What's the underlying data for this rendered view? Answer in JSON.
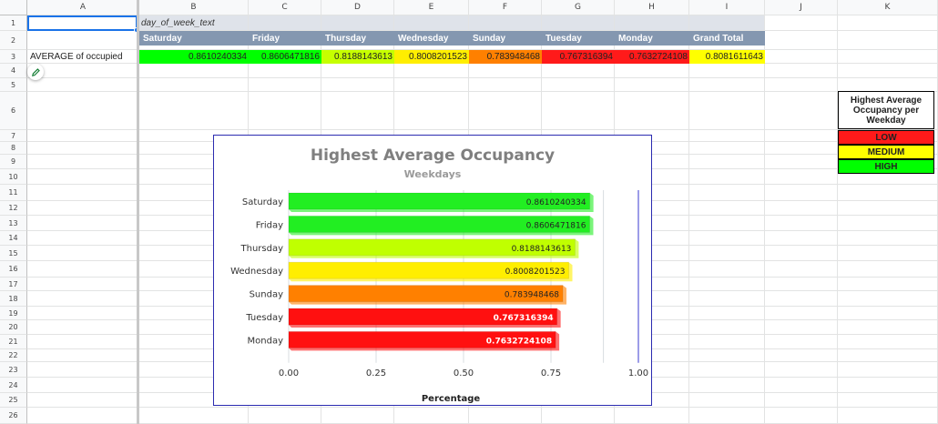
{
  "columns": [
    "A",
    "B",
    "C",
    "D",
    "E",
    "F",
    "G",
    "H",
    "I",
    "J",
    "K"
  ],
  "rows": [
    "1",
    "2",
    "3",
    "4",
    "5",
    "6",
    "7",
    "8",
    "9",
    "10",
    "11",
    "12",
    "13",
    "14",
    "15",
    "16",
    "17",
    "18",
    "19",
    "20",
    "21",
    "22",
    "23",
    "24",
    "25",
    "26"
  ],
  "pivot": {
    "column_field": "day_of_week_text",
    "row_label": "AVERAGE of occupied",
    "headers": [
      "Saturday",
      "Friday",
      "Thursday",
      "Wednesday",
      "Sunday",
      "Tuesday",
      "Monday",
      "Grand Total"
    ],
    "values": [
      "0.8610240334",
      "0.8606471816",
      "0.8188143613",
      "0.8008201523",
      "0.783948468",
      "0.767316394",
      "0.7632724108",
      "0.8081611643"
    ],
    "value_colors": [
      "#00ff00",
      "#00ff00",
      "#c6ff00",
      "#ffee00",
      "#ff8000",
      "#ff1a1a",
      "#ff1a1a",
      "#ffff00"
    ]
  },
  "legend": {
    "title": "Highest Average Occupancy per Weekday",
    "items": [
      {
        "label": "LOW",
        "color": "#ff1a1a"
      },
      {
        "label": "MEDIUM",
        "color": "#ffff00"
      },
      {
        "label": "HIGH",
        "color": "#00ff00"
      }
    ]
  },
  "chart_data": {
    "type": "bar",
    "orientation": "horizontal",
    "title": "Highest Average Occupancy",
    "subtitle": "Weekdays",
    "xlabel": "Percentage",
    "ylabel": "",
    "xlim": [
      0,
      1.0
    ],
    "xticks": [
      "0.00",
      "0.25",
      "0.50",
      "0.75",
      "1.00"
    ],
    "categories": [
      "Saturday",
      "Friday",
      "Thursday",
      "Wednesday",
      "Sunday",
      "Tuesday",
      "Monday"
    ],
    "values": [
      0.8610240334,
      0.8606471816,
      0.8188143613,
      0.8008201523,
      0.783948468,
      0.767316394,
      0.7632724108
    ],
    "labels": [
      "0.8610240334",
      "0.8606471816",
      "0.8188143613",
      "0.8008201523",
      "0.783948468",
      "0.767316394",
      "0.7632724108"
    ],
    "colors": [
      "#22ee22",
      "#22ee22",
      "#c0ff00",
      "#ffee00",
      "#ff8000",
      "#ff1010",
      "#ff1010"
    ],
    "label_colors": [
      "#222222",
      "#222222",
      "#222222",
      "#222222",
      "#222222",
      "#ffffff",
      "#ffffff"
    ],
    "grid": true,
    "legend": "none"
  }
}
